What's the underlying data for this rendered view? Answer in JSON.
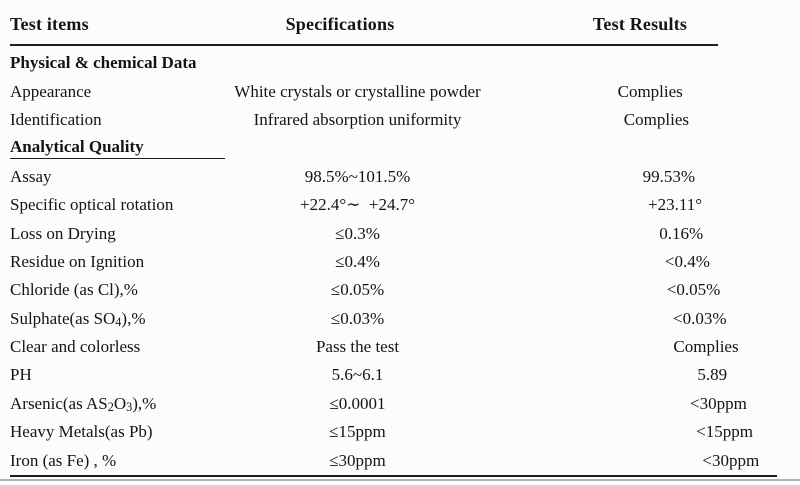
{
  "page": {
    "background": "#fcfcfc",
    "rule_color": "#1c1c1c",
    "text_color": "#141414",
    "scan_line_color": "#b3b3b3"
  },
  "header": {
    "columns": [
      {
        "label": "Test items"
      },
      {
        "label": "Specifications"
      },
      {
        "label": "Test Results"
      }
    ]
  },
  "rows": [
    {
      "type": "section",
      "label": "Physical & chemical Data",
      "underlined": false
    },
    {
      "type": "data",
      "item": "Appearance",
      "specification": "White crystals or crystalline powder",
      "result": "Complies"
    },
    {
      "type": "data",
      "item": "Identification",
      "specification": "Infrared absorption uniformity",
      "result": "Complies"
    },
    {
      "type": "section",
      "label": "Analytical Quality",
      "underlined": true
    },
    {
      "type": "data",
      "item": "Assay",
      "specification": "98.5%~101.5%",
      "result": "99.53%"
    },
    {
      "type": "data",
      "item": "Specific optical rotation",
      "specification": "+22.4°∼  +24.7°",
      "result": "+23.11°"
    },
    {
      "type": "data",
      "item": "Loss on Drying",
      "specification": "≤0.3%",
      "result": "0.16%"
    },
    {
      "type": "data",
      "item": "Residue on Ignition",
      "specification": "≤0.4%",
      "result": "<0.4%"
    },
    {
      "type": "data",
      "item": "Chloride (as Cl),%",
      "specification": "≤0.05%",
      "result": "<0.05%"
    },
    {
      "type": "data",
      "item": "Sulphate(as SO₄),%",
      "specification": "≤0.03%",
      "result": "<0.03%"
    },
    {
      "type": "data",
      "item": "Clear and colorless",
      "specification": "Pass the test",
      "result": "Complies"
    },
    {
      "type": "data",
      "item": "PH",
      "specification": "5.6~6.1",
      "result": "5.89"
    },
    {
      "type": "data",
      "item": "Arsenic(as AS₂O₃),%",
      "specification": "≤0.0001",
      "result": "<30ppm"
    },
    {
      "type": "data",
      "item": "Heavy Metals(as Pb)",
      "specification": "≤15ppm",
      "result": "<15ppm"
    },
    {
      "type": "data",
      "item": "Iron (as Fe) , %",
      "specification": "≤30ppm",
      "result": "<30ppm"
    }
  ]
}
